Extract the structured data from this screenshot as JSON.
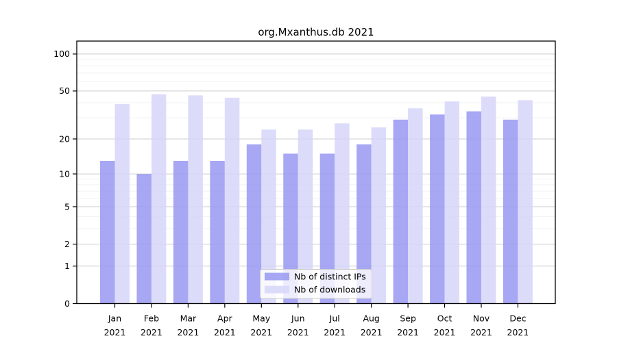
{
  "title": "org.Mxanthus.db 2021",
  "colors": {
    "bar_distinct_ips": "#9898f2",
    "bar_downloads": "#d6d6f9",
    "grid_major": "#cccccc",
    "grid_minor": "#efefef",
    "frame": "#000000",
    "legend_border": "#cccccc",
    "legend_background": "#ffffff"
  },
  "chart_data": {
    "type": "bar",
    "title": "org.Mxanthus.db 2021",
    "scale": "log1p",
    "categories": [
      "Jan",
      "Feb",
      "Mar",
      "Apr",
      "May",
      "Jun",
      "Jul",
      "Aug",
      "Sep",
      "Oct",
      "Nov",
      "Dec"
    ],
    "year": "2021",
    "series": [
      {
        "name": "Nb of distinct IPs",
        "color_key": "bar_distinct_ips",
        "values": [
          13,
          10,
          13,
          13,
          18,
          15,
          15,
          18,
          29,
          32,
          34,
          29
        ]
      },
      {
        "name": "Nb of downloads",
        "color_key": "bar_downloads",
        "values": [
          39,
          47,
          46,
          44,
          24,
          24,
          27,
          25,
          36,
          41,
          45,
          42
        ]
      }
    ],
    "yticks": [
      0,
      1,
      2,
      5,
      10,
      20,
      50,
      100
    ],
    "minor_gridlines": [
      3,
      4,
      6,
      7,
      8,
      9,
      30,
      40,
      60,
      70,
      80,
      90
    ],
    "ylim": [
      0,
      123
    ],
    "grid": "on",
    "legend_position": "lower center",
    "xlabel": "",
    "ylabel": ""
  }
}
